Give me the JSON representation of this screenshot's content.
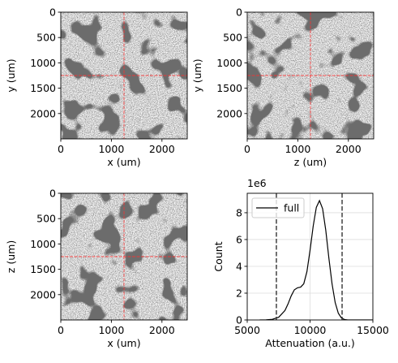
{
  "chart_data": [
    {
      "type": "image",
      "xlabel": "x (um)",
      "ylabel": "y (um)",
      "xlim": [
        0,
        2500
      ],
      "ylim": [
        2500,
        0
      ],
      "xticks": [
        0,
        1000,
        2000
      ],
      "yticks": [
        0,
        500,
        1000,
        1500,
        2000
      ],
      "crosshair": {
        "x": 1250,
        "y": 1250,
        "color": "#ff3030"
      }
    },
    {
      "type": "image",
      "xlabel": "z (um)",
      "ylabel": "y (um)",
      "xlim": [
        0,
        2500
      ],
      "ylim": [
        2500,
        0
      ],
      "xticks": [
        0,
        1000,
        2000
      ],
      "yticks": [
        0,
        500,
        1000,
        1500,
        2000
      ],
      "crosshair": {
        "x": 1250,
        "y": 1250,
        "color": "#ff3030"
      }
    },
    {
      "type": "image",
      "xlabel": "x (um)",
      "ylabel": "z (um)",
      "xlim": [
        0,
        2500
      ],
      "ylim": [
        2500,
        0
      ],
      "xticks": [
        0,
        1000,
        2000
      ],
      "yticks": [
        0,
        500,
        1000,
        1500,
        2000
      ],
      "crosshair": {
        "x": 1250,
        "y": 1250,
        "color": "#ff3030"
      }
    },
    {
      "type": "line",
      "xlabel": "Attenuation (a.u.)",
      "ylabel": "Count",
      "y_offset_label": "1e6",
      "xlim": [
        5000,
        15000
      ],
      "ylim": [
        0,
        9450000
      ],
      "xticks": [
        5000,
        10000,
        15000
      ],
      "yticks": [
        0,
        {
          "value": 2000000,
          "label": "2"
        },
        {
          "value": 4000000,
          "label": "4"
        },
        {
          "value": 6000000,
          "label": "6"
        },
        {
          "value": 8000000,
          "label": "8"
        }
      ],
      "grid": true,
      "legend": "upper left",
      "x": [
        6000,
        6500,
        7000,
        7500,
        8000,
        8250,
        8500,
        8750,
        9000,
        9250,
        9500,
        9750,
        10000,
        10250,
        10500,
        10750,
        11000,
        11250,
        11500,
        11750,
        12000,
        12250,
        12500,
        12750,
        13000,
        15000
      ],
      "series": [
        {
          "name": "full",
          "color": "#000000",
          "values": [
            0,
            10000,
            50000,
            200000,
            700000,
            1200000,
            1800000,
            2250000,
            2400000,
            2450000,
            2700000,
            3600000,
            5200000,
            7000000,
            8400000,
            8900000,
            8300000,
            6700000,
            4600000,
            2700000,
            1300000,
            500000,
            150000,
            30000,
            0,
            0
          ]
        }
      ],
      "vlines": {
        "x": [
          7320,
          12550
        ],
        "color": "#333333"
      }
    }
  ]
}
